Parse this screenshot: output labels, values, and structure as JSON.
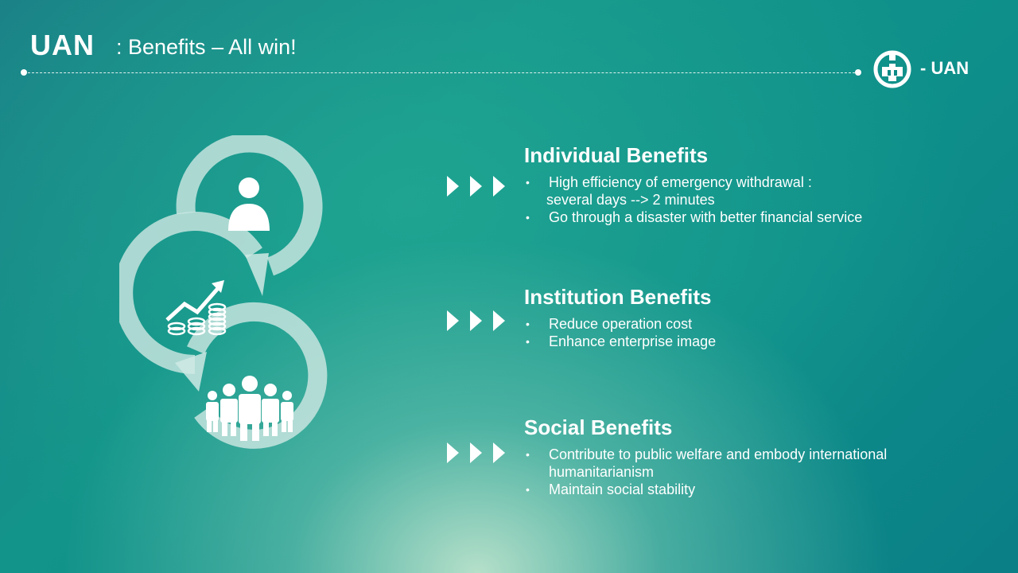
{
  "header": {
    "title": "UAN",
    "subtitle": ": Benefits – All win!",
    "logo_label": "- UAN",
    "logo_icon": "bank-logo-icon"
  },
  "colors": {
    "accent_white": "#ffffff",
    "background_teal": "#0e8f8a",
    "ring_mint": "#cfe9e4"
  },
  "graphic": {
    "icons": [
      "person-icon",
      "growth-chart-coins-icon",
      "group-of-people-icon"
    ]
  },
  "sections": [
    {
      "title": "Individual Benefits",
      "bullets": [
        {
          "text": "High efficiency of emergency withdrawal :",
          "continuation": "several days  --> 2 minutes"
        },
        {
          "text": "Go through a disaster with better financial service"
        }
      ]
    },
    {
      "title": "Institution Benefits",
      "bullets": [
        {
          "text": "Reduce operation cost"
        },
        {
          "text": "Enhance enterprise image"
        }
      ]
    },
    {
      "title": "Social Benefits",
      "bullets": [
        {
          "text": "Contribute to public welfare and embody international",
          "continuation": "humanitarianism"
        },
        {
          "text": "Maintain social stability"
        }
      ]
    }
  ]
}
